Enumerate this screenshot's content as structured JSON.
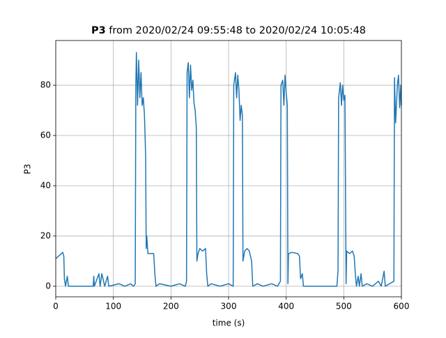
{
  "chart_data": {
    "type": "line",
    "title_bold": "P3",
    "title": "from 2020/02/24 09:55:48 to 2020/02/24 10:05:48",
    "xlabel": "time (s)",
    "ylabel": "P3",
    "xlim": [
      0,
      600
    ],
    "ylim": [
      -4.2,
      97.8
    ],
    "xticks": [
      0,
      100,
      200,
      300,
      400,
      500,
      600
    ],
    "yticks": [
      0,
      20,
      40,
      60,
      80
    ],
    "grid": true,
    "series": [
      {
        "name": "P3",
        "color": "#1f77b4",
        "x": [
          0,
          10,
          12,
          14,
          15,
          17,
          20,
          22,
          65,
          66,
          67,
          75,
          77,
          80,
          85,
          90,
          92,
          110,
          120,
          130,
          135,
          138,
          139,
          140,
          142,
          144,
          146,
          148,
          150,
          152,
          154,
          155,
          156,
          157,
          158,
          160,
          165,
          170,
          172,
          174,
          180,
          200,
          215,
          225,
          227,
          228,
          230,
          232,
          234,
          236,
          238,
          240,
          242,
          244,
          245,
          247,
          250,
          255,
          260,
          262,
          264,
          270,
          285,
          300,
          308,
          309,
          312,
          314,
          316,
          318,
          320,
          322,
          324,
          325,
          328,
          332,
          336,
          340,
          342,
          350,
          360,
          375,
          385,
          390,
          391,
          394,
          396,
          398,
          400,
          402,
          403,
          404,
          410,
          420,
          423,
          425,
          428,
          430,
          440,
          488,
          490,
          491,
          494,
          496,
          498,
          500,
          502,
          504,
          505,
          510,
          515,
          518,
          520,
          522,
          525,
          527,
          530,
          532,
          540,
          550,
          560,
          565,
          570,
          572,
          587,
          588,
          590,
          593,
          595,
          597,
          599,
          600
        ],
        "values": [
          11,
          13,
          13.5,
          12,
          3,
          0,
          4,
          0,
          0,
          4,
          0,
          5,
          0,
          5,
          0,
          4,
          0,
          1,
          0,
          1,
          0,
          1,
          80,
          93,
          72,
          90,
          75,
          85,
          72,
          75,
          68,
          60,
          52,
          15,
          20,
          13,
          13,
          13,
          5,
          0,
          1,
          0,
          1,
          0,
          2,
          85,
          89,
          75,
          88,
          78,
          82,
          73,
          70,
          63,
          10,
          13,
          15,
          14,
          15,
          5,
          0,
          1,
          0,
          1,
          0,
          80,
          85,
          75,
          84,
          78,
          66,
          72,
          68,
          10,
          14,
          15,
          14,
          10,
          0,
          1,
          0,
          1,
          0,
          2,
          80,
          82,
          72,
          84,
          77,
          72,
          1,
          13,
          13.5,
          13,
          12,
          3,
          5,
          0,
          0,
          0,
          6,
          75,
          81,
          72,
          80,
          74,
          76,
          1,
          14,
          13,
          14,
          12,
          5,
          0,
          4,
          0,
          5,
          0,
          1,
          0,
          2,
          0,
          6,
          0,
          2,
          83,
          65,
          80,
          84,
          71,
          80,
          72
        ]
      }
    ]
  }
}
